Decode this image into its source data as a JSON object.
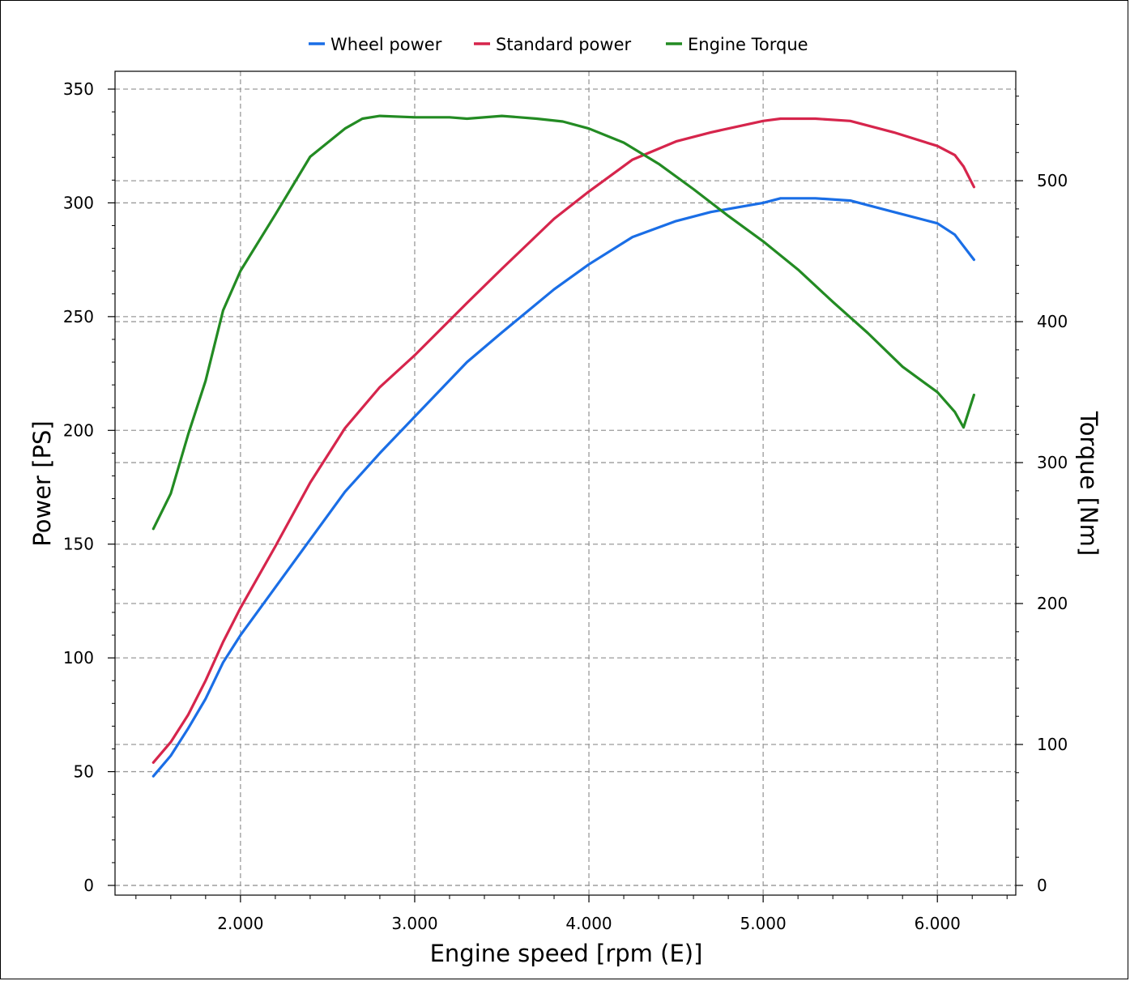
{
  "chart_data": {
    "type": "line",
    "xlabel": "Engine speed [rpm (E)]",
    "ylabel_left": "Power [PS]",
    "ylabel_right": "Torque [Nm]",
    "xlim": [
      1280,
      6450
    ],
    "ylim_left": [
      0,
      350
    ],
    "ylim_right": [
      0,
      565
    ],
    "x_ticks": [
      {
        "value": 2000,
        "label": "2.000"
      },
      {
        "value": 3000,
        "label": "3.000"
      },
      {
        "value": 4000,
        "label": "4.000"
      },
      {
        "value": 5000,
        "label": "5.000"
      },
      {
        "value": 6000,
        "label": "6.000"
      }
    ],
    "y_left_ticks": [
      {
        "value": 0,
        "label": "0"
      },
      {
        "value": 50,
        "label": "50"
      },
      {
        "value": 100,
        "label": "100"
      },
      {
        "value": 150,
        "label": "150"
      },
      {
        "value": 200,
        "label": "200"
      },
      {
        "value": 250,
        "label": "250"
      },
      {
        "value": 300,
        "label": "300"
      },
      {
        "value": 350,
        "label": "350"
      }
    ],
    "y_right_ticks": [
      {
        "value": 0,
        "label": "0"
      },
      {
        "value": 100,
        "label": "100"
      },
      {
        "value": 200,
        "label": "200"
      },
      {
        "value": 300,
        "label": "300"
      },
      {
        "value": 400,
        "label": "400"
      },
      {
        "value": 500,
        "label": "500"
      }
    ],
    "grid": true,
    "legend_position": "top-center",
    "series": [
      {
        "name": "Wheel power",
        "axis": "left",
        "color": "#1a6ee6",
        "x": [
          1500,
          1600,
          1700,
          1800,
          1900,
          2000,
          2200,
          2400,
          2600,
          2800,
          3000,
          3300,
          3500,
          3800,
          4000,
          4250,
          4500,
          4700,
          5000,
          5100,
          5300,
          5500,
          5750,
          6000,
          6100,
          6150,
          6210
        ],
        "y": [
          48,
          57,
          69,
          82,
          98,
          110,
          131,
          152,
          173,
          190,
          206,
          230,
          243,
          262,
          273,
          285,
          292,
          296,
          300,
          302,
          302,
          301,
          296,
          291,
          286,
          281,
          275
        ]
      },
      {
        "name": "Standard power",
        "axis": "left",
        "color": "#d6254c",
        "x": [
          1500,
          1600,
          1700,
          1800,
          1900,
          2000,
          2200,
          2400,
          2600,
          2800,
          3000,
          3300,
          3500,
          3800,
          4000,
          4250,
          4500,
          4700,
          5000,
          5100,
          5300,
          5500,
          5750,
          6000,
          6100,
          6150,
          6210
        ],
        "y": [
          54,
          63,
          75,
          90,
          107,
          122,
          149,
          177,
          201,
          219,
          233,
          256,
          271,
          293,
          305,
          319,
          327,
          331,
          336,
          337,
          337,
          336,
          331,
          325,
          321,
          316,
          307
        ]
      },
      {
        "name": "Engine Torque",
        "axis": "right",
        "color": "#238b23",
        "x": [
          1500,
          1600,
          1700,
          1800,
          1900,
          2000,
          2200,
          2400,
          2600,
          2700,
          2800,
          3000,
          3200,
          3300,
          3500,
          3700,
          3850,
          4000,
          4200,
          4400,
          4600,
          4800,
          5000,
          5200,
          5400,
          5600,
          5800,
          6000,
          6100,
          6150,
          6210
        ],
        "y": [
          253,
          278,
          320,
          358,
          408,
          436,
          476,
          517,
          537,
          544,
          546,
          545,
          545,
          544,
          546,
          544,
          542,
          537,
          527,
          512,
          494,
          475,
          457,
          437,
          414,
          392,
          368,
          350,
          336,
          325,
          348
        ]
      }
    ]
  }
}
